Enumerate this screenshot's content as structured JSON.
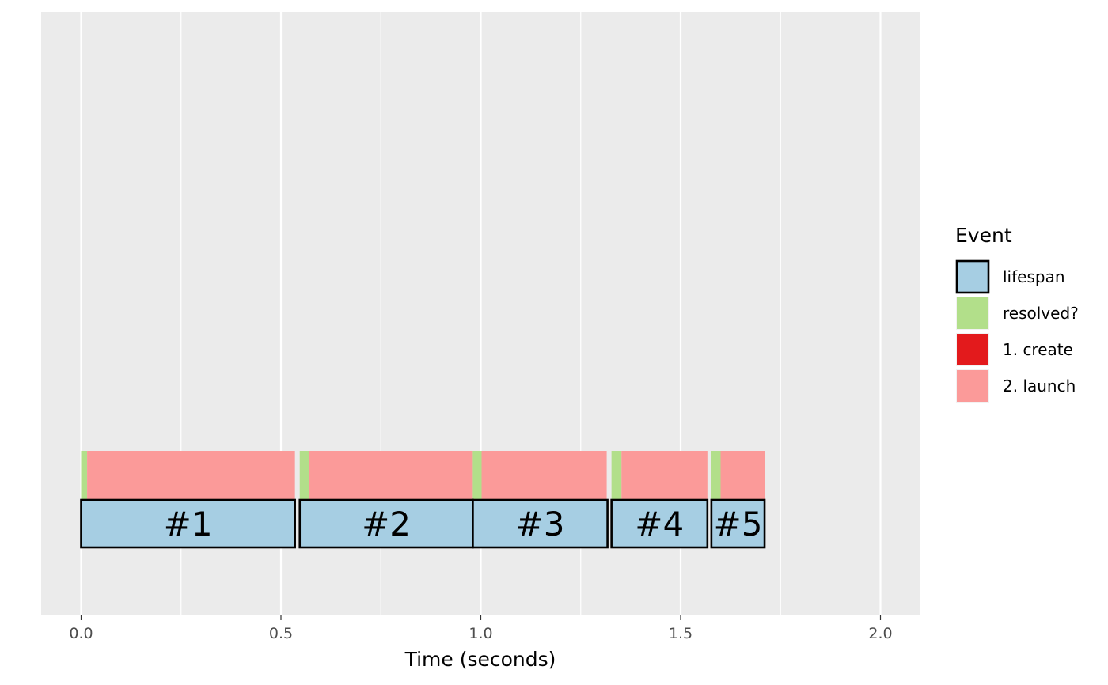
{
  "chart_data": {
    "type": "bar",
    "orientation": "horizontal-gantt",
    "title": "",
    "xlabel": "Time (seconds)",
    "ylabel": "",
    "xlim": [
      -0.1,
      2.1
    ],
    "x_ticks": [
      0.0,
      0.5,
      1.0,
      1.5,
      2.0
    ],
    "x_tick_labels": [
      "0.0",
      "0.5",
      "1.0",
      "1.5",
      "2.0"
    ],
    "grid": true,
    "legend_position": "right",
    "legend": {
      "title": "Event",
      "entries": [
        {
          "label": "lifespan",
          "color": "#a6cee3",
          "outlined": true
        },
        {
          "label": "resolved?",
          "color": "#b2df8a",
          "outlined": false
        },
        {
          "label": "1. create",
          "color": "#e31a1c",
          "outlined": false
        },
        {
          "label": "2. launch",
          "color": "#fb9a99",
          "outlined": false
        }
      ]
    },
    "lifespans": [
      {
        "label": "#1",
        "start": 0.0,
        "end": 0.535
      },
      {
        "label": "#2",
        "start": 0.547,
        "end": 0.98
      },
      {
        "label": "#3",
        "start": 0.98,
        "end": 1.317
      },
      {
        "label": "#4",
        "start": 1.327,
        "end": 1.567
      },
      {
        "label": "#5",
        "start": 1.577,
        "end": 1.71
      }
    ],
    "events": [
      {
        "event": "resolved?",
        "start": 0.0,
        "end": 0.015
      },
      {
        "event": "2. launch",
        "start": 0.015,
        "end": 0.535
      },
      {
        "event": "resolved?",
        "start": 0.547,
        "end": 0.57
      },
      {
        "event": "2. launch",
        "start": 0.57,
        "end": 0.98
      },
      {
        "event": "resolved?",
        "start": 0.98,
        "end": 1.002
      },
      {
        "event": "2. launch",
        "start": 1.002,
        "end": 1.315
      },
      {
        "event": "resolved?",
        "start": 1.327,
        "end": 1.352
      },
      {
        "event": "2. launch",
        "start": 1.352,
        "end": 1.567
      },
      {
        "event": "resolved?",
        "start": 1.577,
        "end": 1.6
      },
      {
        "event": "2. launch",
        "start": 1.6,
        "end": 1.71
      }
    ]
  }
}
